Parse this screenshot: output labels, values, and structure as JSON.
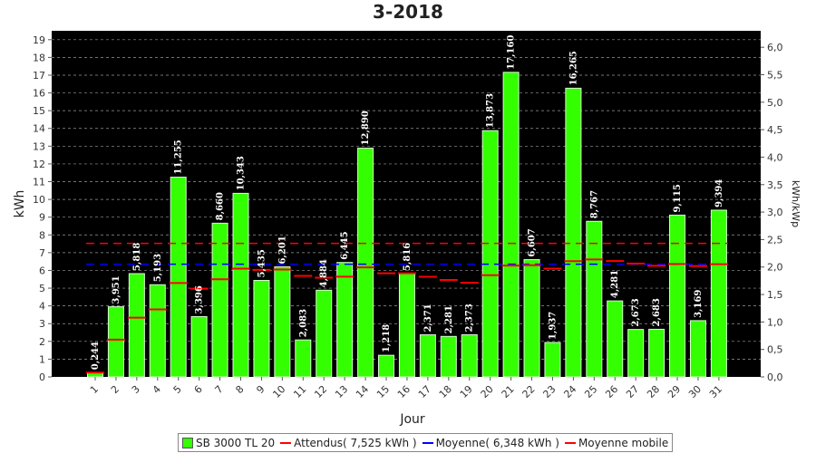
{
  "chart_data": {
    "type": "bar",
    "title": "3-2018",
    "xlabel": "Jour",
    "ylabel": "kWh",
    "y2label": "kWh/kWp",
    "ylim": [
      0,
      19.5
    ],
    "y2lim": [
      0,
      6.3
    ],
    "grid": true,
    "legend_position": "bottom",
    "categories": [
      "1",
      "2",
      "3",
      "4",
      "5",
      "6",
      "7",
      "8",
      "9",
      "10",
      "11",
      "12",
      "13",
      "14",
      "15",
      "16",
      "17",
      "18",
      "19",
      "20",
      "21",
      "22",
      "23",
      "24",
      "25",
      "26",
      "27",
      "28",
      "29",
      "30",
      "31"
    ],
    "series": [
      {
        "name": "SB 3000 TL 20",
        "type": "bar",
        "color": "#33ff00",
        "values": [
          0.244,
          3.951,
          5.818,
          5.193,
          11.255,
          3.396,
          8.66,
          10.343,
          5.435,
          6.201,
          2.083,
          4.884,
          6.445,
          12.89,
          1.218,
          5.816,
          2.371,
          2.281,
          2.373,
          13.873,
          17.16,
          6.607,
          1.937,
          16.265,
          8.767,
          4.281,
          2.673,
          2.683,
          9.115,
          3.169,
          9.394
        ],
        "labels": [
          "0,244",
          "3,951",
          "5,818",
          "5,193",
          "11,255",
          "3,396",
          "8,660",
          "10,343",
          "5,435",
          "6,201",
          "2,083",
          "4,884",
          "6,445",
          "12,890",
          "1,218",
          "5,816",
          "2,371",
          "2,281",
          "2,373",
          "13,873",
          "17,160",
          "6,607",
          "1,937",
          "16,265",
          "8,767",
          "4,281",
          "2,673",
          "2,683",
          "9,115",
          "3,169",
          "9,394"
        ]
      },
      {
        "name": "Attendus( 7,525 kWh )",
        "type": "hline-dashed",
        "color": "#ff0000",
        "value": 7.525
      },
      {
        "name": "Moyenne( 6,348 kWh )",
        "type": "hline-dashed",
        "color": "#0000ff",
        "value": 6.348
      },
      {
        "name": "Moyenne mobile",
        "type": "step-markers",
        "color": "#ff0000",
        "values": [
          0.24,
          2.1,
          3.34,
          3.8,
          5.29,
          4.97,
          5.5,
          6.1,
          6.03,
          6.05,
          5.69,
          5.59,
          5.65,
          6.17,
          5.84,
          5.84,
          5.64,
          5.46,
          5.3,
          5.73,
          6.27,
          6.29,
          6.1,
          6.52,
          6.62,
          6.53,
          6.39,
          6.26,
          6.36,
          6.25,
          6.35
        ]
      }
    ],
    "yticks": [
      "0",
      "1",
      "2",
      "3",
      "4",
      "5",
      "6",
      "7",
      "8",
      "9",
      "10",
      "11",
      "12",
      "13",
      "14",
      "15",
      "16",
      "17",
      "18",
      "19"
    ],
    "y2ticks": [
      "0,0",
      "0,5",
      "1,0",
      "1,5",
      "2,0",
      "2,5",
      "3,0",
      "3,5",
      "4,0",
      "4,5",
      "5,0",
      "5,5",
      "6,0"
    ]
  }
}
